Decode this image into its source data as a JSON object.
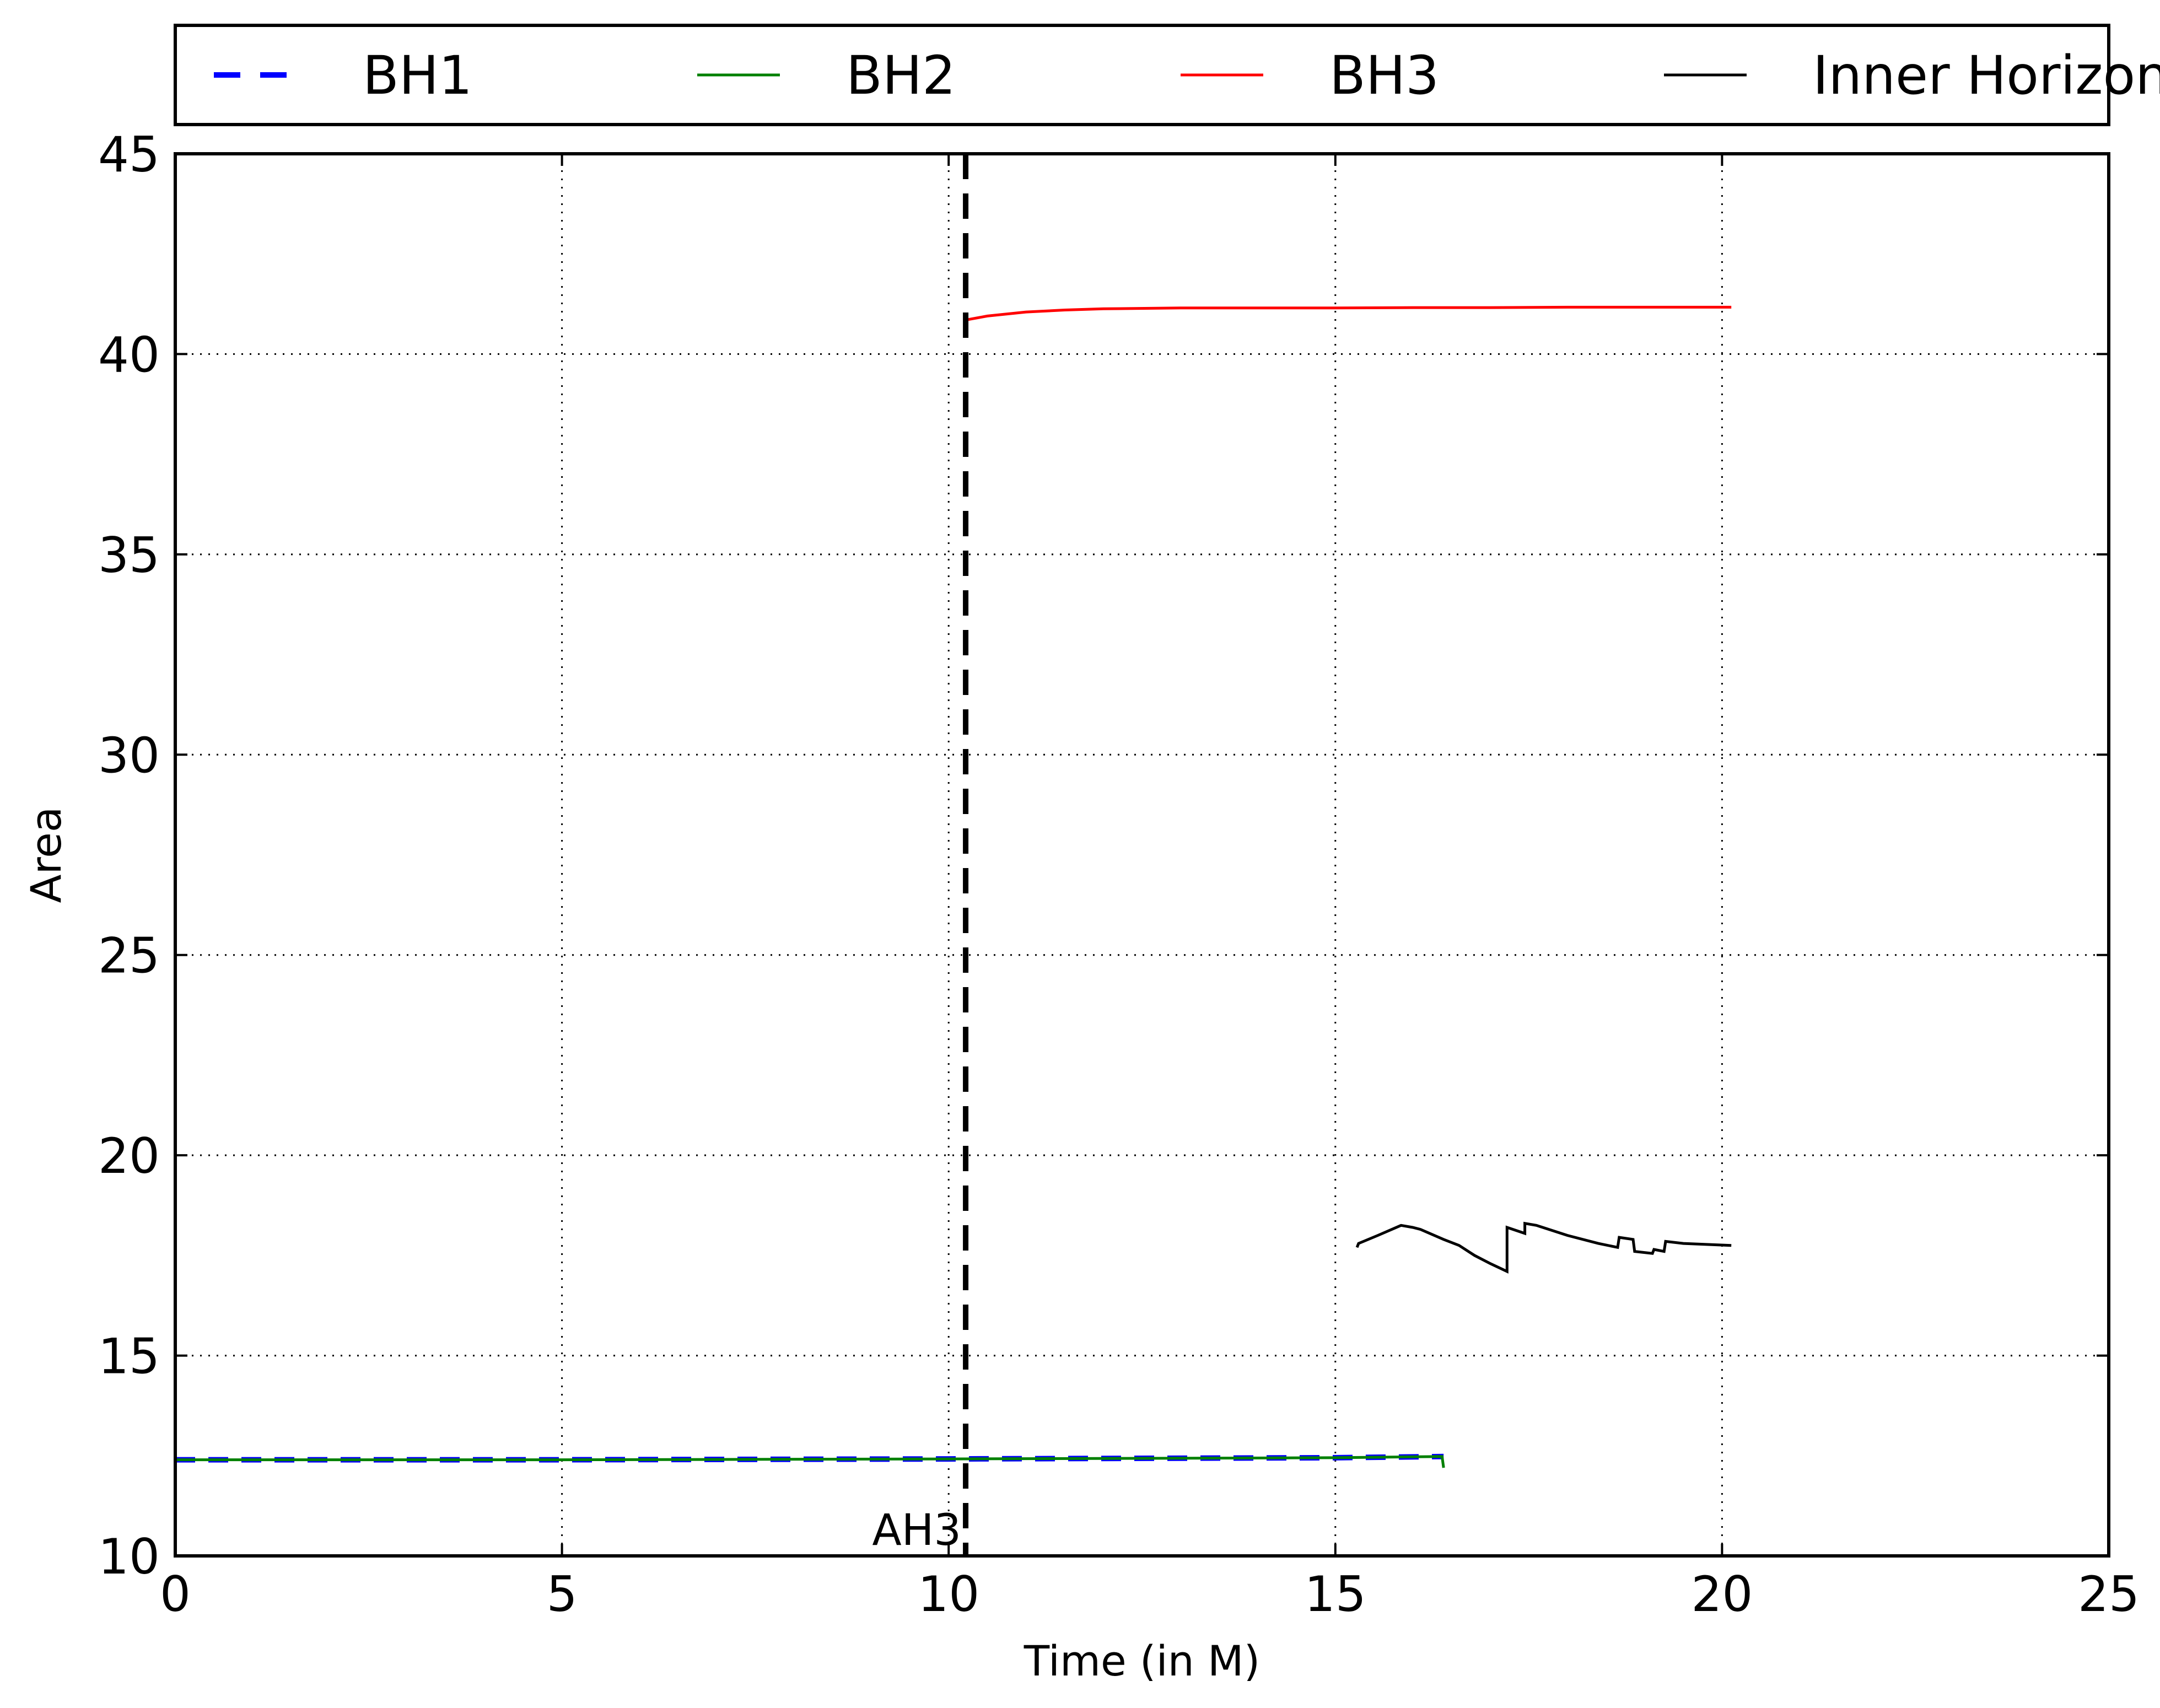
{
  "chart_data": {
    "type": "line",
    "title": "",
    "xlabel": "Time (in M)",
    "ylabel": "Area",
    "xlim": [
      0,
      25
    ],
    "ylim": [
      10,
      45
    ],
    "xticks": [
      0,
      5,
      10,
      15,
      20,
      25
    ],
    "yticks": [
      10,
      15,
      20,
      25,
      30,
      35,
      40,
      45
    ],
    "grid": true,
    "legend_position": "top, outside the plot",
    "series": [
      {
        "name": "BH1",
        "color": "#0000ff",
        "style": "dashed",
        "x": [
          0,
          5,
          10,
          15,
          16.4
        ],
        "y": [
          12.4,
          12.4,
          12.42,
          12.45,
          12.48
        ]
      },
      {
        "name": "BH2",
        "color": "#008000",
        "style": "solid",
        "x": [
          0,
          5,
          10,
          15,
          16.35,
          16.38,
          16.4
        ],
        "y": [
          12.4,
          12.4,
          12.42,
          12.45,
          12.48,
          12.48,
          12.2
        ]
      },
      {
        "name": "BH3",
        "color": "#ff0000",
        "style": "solid",
        "x": [
          10.22,
          10.5,
          11,
          11.5,
          12,
          13,
          14,
          15,
          16,
          17,
          18,
          19,
          20,
          20.12
        ],
        "y": [
          40.85,
          40.95,
          41.05,
          41.1,
          41.13,
          41.15,
          41.15,
          41.15,
          41.16,
          41.16,
          41.17,
          41.17,
          41.17,
          41.17
        ]
      },
      {
        "name": "Inner Horizon",
        "color": "#000000",
        "style": "solid",
        "x": [
          15.28,
          15.3,
          15.55,
          15.85,
          16.0,
          16.1,
          16.4,
          16.6,
          16.8,
          17.0,
          17.22,
          17.22,
          17.45,
          17.45,
          17.6,
          18.0,
          18.4,
          18.65,
          18.67,
          18.85,
          18.87,
          19.1,
          19.12,
          19.25,
          19.27,
          19.5,
          20.12
        ],
        "y": [
          17.7,
          17.8,
          18.0,
          18.25,
          18.2,
          18.15,
          17.9,
          17.75,
          17.5,
          17.3,
          17.1,
          18.2,
          18.05,
          18.3,
          18.25,
          18.0,
          17.8,
          17.7,
          17.95,
          17.9,
          17.6,
          17.55,
          17.65,
          17.6,
          17.85,
          17.8,
          17.75
        ]
      }
    ],
    "annotations": [
      {
        "text": "AH3",
        "x": 10.22,
        "style": "dashed vertical line",
        "color": "#000000"
      }
    ]
  }
}
